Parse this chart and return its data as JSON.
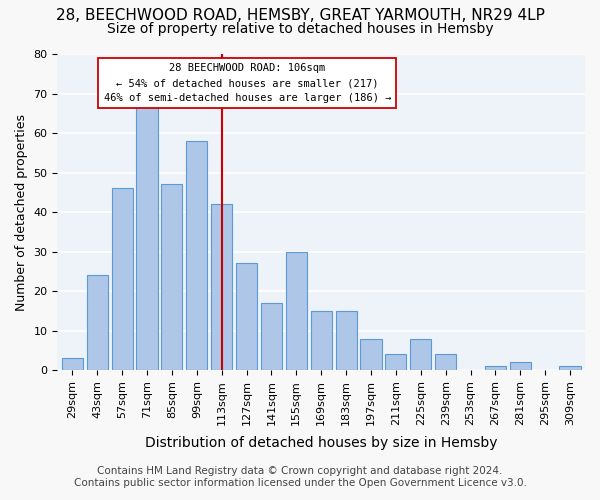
{
  "title1": "28, BEECHWOOD ROAD, HEMSBY, GREAT YARMOUTH, NR29 4LP",
  "title2": "Size of property relative to detached houses in Hemsby",
  "xlabel": "Distribution of detached houses by size in Hemsby",
  "ylabel": "Number of detached properties",
  "categories": [
    "29sqm",
    "43sqm",
    "57sqm",
    "71sqm",
    "85sqm",
    "99sqm",
    "113sqm",
    "127sqm",
    "141sqm",
    "155sqm",
    "169sqm",
    "183sqm",
    "197sqm",
    "211sqm",
    "225sqm",
    "239sqm",
    "253sqm",
    "267sqm",
    "281sqm",
    "295sqm",
    "309sqm"
  ],
  "values": [
    3,
    24,
    46,
    67,
    47,
    58,
    42,
    27,
    17,
    30,
    15,
    15,
    8,
    4,
    8,
    4,
    0,
    1,
    2,
    0,
    1
  ],
  "bar_color": "#aec6e8",
  "bar_edge_color": "#5b9bd5",
  "ref_line_x": 6,
  "ref_line_color": "#cc0000",
  "annotation_line1": "28 BEECHWOOD ROAD: 106sqm",
  "annotation_line2": "← 54% of detached houses are smaller (217)",
  "annotation_line3": "46% of semi-detached houses are larger (186) →",
  "annotation_box_color": "#ffffff",
  "annotation_box_edge": "#cc0000",
  "ylim": [
    0,
    80
  ],
  "yticks": [
    0,
    10,
    20,
    30,
    40,
    50,
    60,
    70,
    80
  ],
  "footer1": "Contains HM Land Registry data © Crown copyright and database right 2024.",
  "footer2": "Contains public sector information licensed under the Open Government Licence v3.0.",
  "background_color": "#eef2f9",
  "grid_color": "#ffffff",
  "title1_fontsize": 11,
  "title2_fontsize": 10,
  "xlabel_fontsize": 10,
  "ylabel_fontsize": 9,
  "tick_fontsize": 8,
  "footer_fontsize": 7.5
}
